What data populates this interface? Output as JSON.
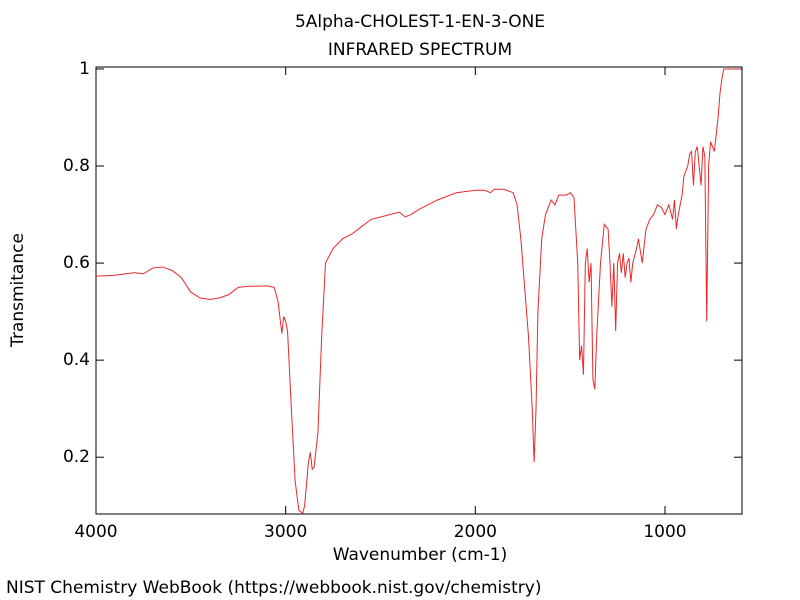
{
  "chart_data": {
    "type": "line",
    "title": "5Alpha-CHOLEST-1-EN-3-ONE",
    "subtitle": "INFRARED SPECTRUM",
    "x_label": "Wavenumber (cm-1)",
    "y_label": "Transmitance",
    "xlim": [
      4000,
      594
    ],
    "ylim": [
      0.083,
      1.004
    ],
    "xticks": [
      4000,
      3000,
      2000,
      1000
    ],
    "yticks": [
      0.2,
      0.4,
      0.6,
      0.8,
      1
    ],
    "series": [
      {
        "color": "#e8282a",
        "x": [
          4000,
          3900,
          3800,
          3750,
          3700,
          3650,
          3600,
          3550,
          3500,
          3450,
          3400,
          3350,
          3300,
          3250,
          3200,
          3100,
          3060,
          3040,
          3020,
          3010,
          3000,
          2990,
          2970,
          2950,
          2930,
          2910,
          2900,
          2880,
          2870,
          2860,
          2850,
          2830,
          2810,
          2790,
          2750,
          2700,
          2650,
          2600,
          2550,
          2500,
          2450,
          2400,
          2370,
          2340,
          2300,
          2200,
          2100,
          2000,
          1950,
          1920,
          1900,
          1850,
          1800,
          1780,
          1760,
          1740,
          1720,
          1700,
          1690,
          1680,
          1670,
          1650,
          1630,
          1610,
          1600,
          1580,
          1560,
          1520,
          1500,
          1480,
          1460,
          1450,
          1440,
          1430,
          1420,
          1410,
          1400,
          1390,
          1380,
          1370,
          1360,
          1340,
          1320,
          1300,
          1290,
          1280,
          1270,
          1260,
          1250,
          1240,
          1230,
          1220,
          1210,
          1200,
          1190,
          1180,
          1170,
          1150,
          1140,
          1120,
          1100,
          1080,
          1060,
          1040,
          1020,
          1000,
          980,
          960,
          950,
          940,
          930,
          910,
          900,
          880,
          870,
          860,
          850,
          840,
          830,
          820,
          810,
          800,
          790,
          780,
          770,
          760,
          740,
          720,
          710,
          700,
          690,
          600
        ],
        "values": [
          0.573,
          0.575,
          0.58,
          0.578,
          0.59,
          0.592,
          0.585,
          0.57,
          0.54,
          0.528,
          0.525,
          0.528,
          0.535,
          0.55,
          0.552,
          0.553,
          0.55,
          0.52,
          0.455,
          0.49,
          0.48,
          0.46,
          0.3,
          0.15,
          0.09,
          0.085,
          0.1,
          0.19,
          0.21,
          0.175,
          0.18,
          0.25,
          0.45,
          0.6,
          0.63,
          0.65,
          0.66,
          0.675,
          0.69,
          0.695,
          0.7,
          0.705,
          0.695,
          0.7,
          0.71,
          0.73,
          0.745,
          0.75,
          0.75,
          0.745,
          0.752,
          0.752,
          0.745,
          0.72,
          0.65,
          0.55,
          0.45,
          0.3,
          0.19,
          0.3,
          0.5,
          0.65,
          0.7,
          0.72,
          0.73,
          0.72,
          0.74,
          0.74,
          0.745,
          0.735,
          0.6,
          0.4,
          0.43,
          0.37,
          0.6,
          0.63,
          0.56,
          0.6,
          0.36,
          0.34,
          0.45,
          0.6,
          0.68,
          0.67,
          0.6,
          0.51,
          0.6,
          0.46,
          0.6,
          0.62,
          0.58,
          0.62,
          0.57,
          0.6,
          0.61,
          0.56,
          0.6,
          0.63,
          0.65,
          0.6,
          0.67,
          0.69,
          0.7,
          0.72,
          0.715,
          0.7,
          0.72,
          0.69,
          0.73,
          0.67,
          0.7,
          0.74,
          0.78,
          0.8,
          0.825,
          0.83,
          0.76,
          0.83,
          0.84,
          0.8,
          0.76,
          0.84,
          0.82,
          0.48,
          0.8,
          0.85,
          0.83,
          0.9,
          0.95,
          0.98,
          1.0,
          1.0
        ]
      }
    ]
  },
  "footer": "NIST Chemistry WebBook (https://webbook.nist.gov/chemistry)"
}
